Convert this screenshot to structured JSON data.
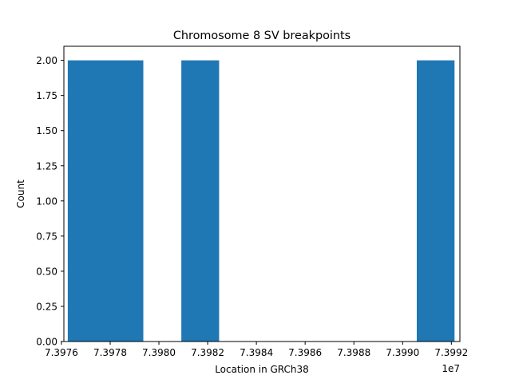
{
  "chart_data": {
    "type": "bar",
    "title": "Chromosome 8 SV breakpoints",
    "xlabel": "Location in GRCh38",
    "ylabel": "Count",
    "x_offset_label": "1e7",
    "xlim": [
      7.39761,
      7.399235
    ],
    "ylim": [
      0,
      2.1
    ],
    "xticks": [
      7.3976,
      7.3978,
      7.398,
      7.3982,
      7.3984,
      7.3986,
      7.3988,
      7.399,
      7.3992
    ],
    "xtick_labels": [
      "7.3976",
      "7.3978",
      "7.3980",
      "7.3982",
      "7.3984",
      "7.3986",
      "7.3988",
      "7.3990",
      "7.3992"
    ],
    "yticks": [
      0,
      0.25,
      0.5,
      0.75,
      1.0,
      1.25,
      1.5,
      1.75,
      2.0
    ],
    "ytick_labels": [
      "0.00",
      "0.25",
      "0.50",
      "0.75",
      "1.00",
      "1.25",
      "1.50",
      "1.75",
      "2.00"
    ],
    "bins": [
      {
        "x0": 7.397626,
        "x1": 7.397936,
        "count": 2
      },
      {
        "x0": 7.398092,
        "x1": 7.398247,
        "count": 2
      },
      {
        "x0": 7.399058,
        "x1": 7.399213,
        "count": 2
      }
    ],
    "grid": false,
    "bar_color": "#1f77b4"
  }
}
